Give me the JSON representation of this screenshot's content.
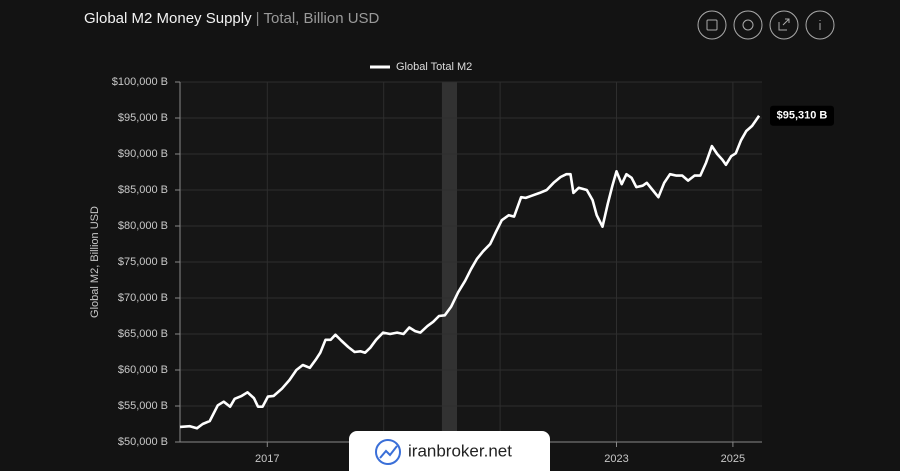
{
  "chart_data": {
    "type": "line",
    "title": "Global M2 Money Supply",
    "subtitle": "Total, Billion USD",
    "y_label": "Global M2, Billion USD",
    "x": [
      2015.5,
      2015.67,
      2015.79,
      2015.89,
      2016.01,
      2016.15,
      2016.25,
      2016.36,
      2016.44,
      2016.56,
      2016.66,
      2016.77,
      2016.84,
      2016.92,
      2017.01,
      2017.11,
      2017.25,
      2017.38,
      2017.5,
      2017.61,
      2017.73,
      2017.83,
      2017.91,
      2018.0,
      2018.09,
      2018.17,
      2018.27,
      2018.39,
      2018.5,
      2018.6,
      2018.68,
      2018.77,
      2018.87,
      2018.99,
      2019.11,
      2019.23,
      2019.34,
      2019.44,
      2019.54,
      2019.63,
      2019.75,
      2019.85,
      2019.95,
      2020.05,
      2020.16,
      2020.28,
      2020.4,
      2020.5,
      2020.6,
      2020.71,
      2020.83,
      2020.93,
      2021.03,
      2021.15,
      2021.24,
      2021.36,
      2021.44,
      2021.54,
      2021.68,
      2021.8,
      2021.92,
      2022.04,
      2022.14,
      2022.21,
      2022.26,
      2022.35,
      2022.49,
      2022.59,
      2022.66,
      2022.76,
      2022.85,
      2022.93,
      2023.0,
      2023.09,
      2023.17,
      2023.26,
      2023.34,
      2023.45,
      2023.52,
      2023.62,
      2023.72,
      2023.82,
      2023.92,
      2024.03,
      2024.13,
      2024.23,
      2024.34,
      2024.44,
      2024.54,
      2024.64,
      2024.73,
      2024.82,
      2024.88,
      2024.97,
      2025.05,
      2025.14,
      2025.23,
      2025.33,
      2025.45
    ],
    "series": [
      {
        "name": "Global Total M2",
        "color": "#ffffff",
        "values": [
          52100,
          52200,
          51900,
          52500,
          52900,
          55100,
          55600,
          54900,
          56000,
          56400,
          56900,
          56100,
          54900,
          54900,
          56300,
          56400,
          57400,
          58600,
          60000,
          60700,
          60300,
          61400,
          62400,
          64200,
          64200,
          64900,
          64100,
          63200,
          62500,
          62600,
          62400,
          63100,
          64200,
          65200,
          65000,
          65200,
          65000,
          65900,
          65400,
          65200,
          66100,
          66700,
          67500,
          67600,
          68800,
          70800,
          72400,
          74000,
          75400,
          76500,
          77500,
          79200,
          80800,
          81500,
          81300,
          84000,
          83900,
          84200,
          84600,
          85000,
          86000,
          86800,
          87200,
          87200,
          84600,
          85300,
          85000,
          83600,
          81500,
          79900,
          83100,
          85600,
          87600,
          85800,
          87200,
          86700,
          85400,
          85600,
          86000,
          85000,
          84000,
          86000,
          87200,
          87000,
          87000,
          86300,
          87000,
          87000,
          88800,
          91100,
          90000,
          89200,
          88500,
          89700,
          90100,
          91900,
          93200,
          93900,
          95310
        ]
      }
    ],
    "end_label": {
      "value": 95310,
      "label": "$95,310 B"
    },
    "shade": [
      2020.0,
      2020.26
    ],
    "xlim": [
      2015.5,
      2025.5
    ],
    "xticks": [
      2017,
      2019,
      2021,
      2023,
      2025
    ],
    "ylim": [
      50000,
      100000
    ],
    "yticks": [
      {
        "value": 50000,
        "label": "$50,000 B"
      },
      {
        "value": 55000,
        "label": "$55,000 B"
      },
      {
        "value": 60000,
        "label": "$60,000 B"
      },
      {
        "value": 65000,
        "label": "$65,000 B"
      },
      {
        "value": 70000,
        "label": "$70,000 B"
      },
      {
        "value": 75000,
        "label": "$75,000 B"
      },
      {
        "value": 80000,
        "label": "$80,000 B"
      },
      {
        "value": 85000,
        "label": "$85,000 B"
      },
      {
        "value": 90000,
        "label": "$90,000 B"
      },
      {
        "value": 95000,
        "label": "$95,000 B"
      },
      {
        "value": 100000,
        "label": "$100,000 B"
      }
    ],
    "grid": true
  },
  "watermark": "iranbroker.net"
}
